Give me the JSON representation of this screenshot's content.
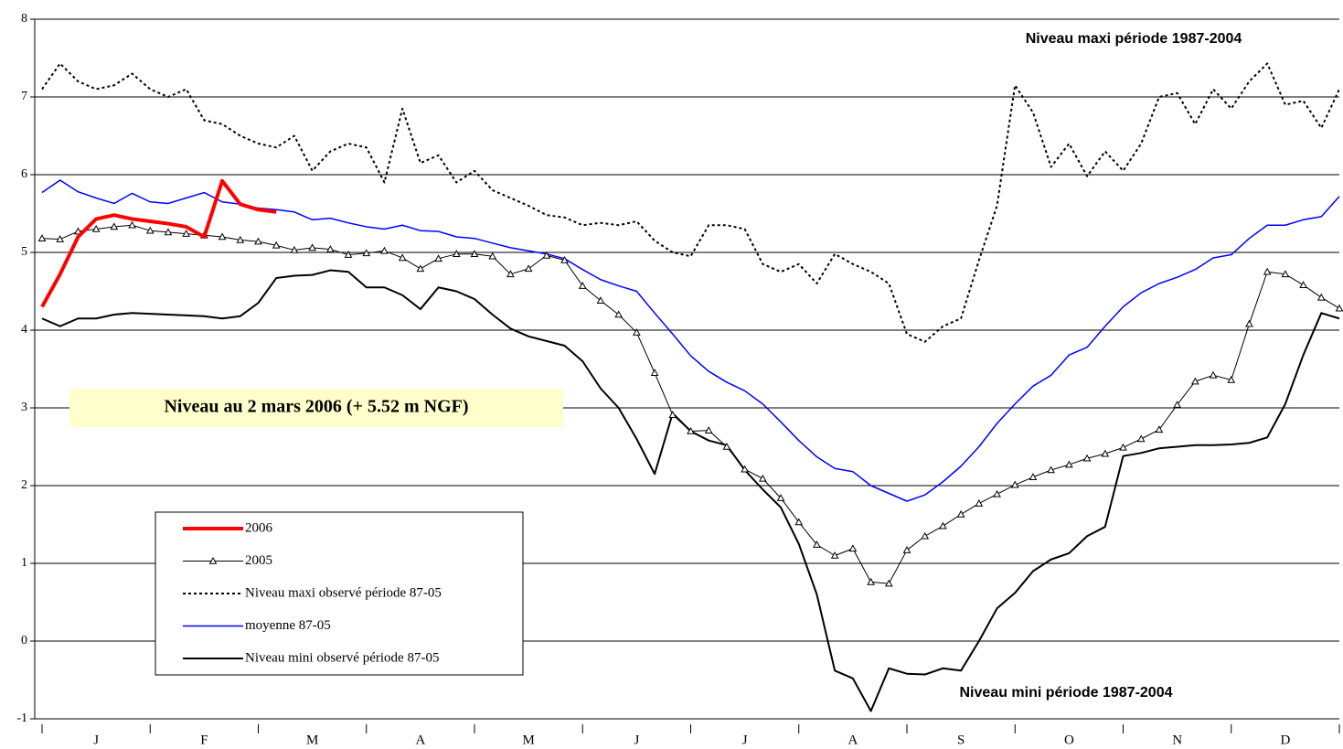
{
  "chart_data": {
    "type": "line",
    "x": [
      0,
      1,
      2,
      3,
      4,
      5,
      6,
      7,
      8,
      9,
      10,
      11,
      12,
      13,
      14,
      15,
      16,
      17,
      18,
      19,
      20,
      21,
      22,
      23,
      24,
      25,
      26,
      27,
      28,
      29,
      30,
      31,
      32,
      33,
      34,
      35,
      36,
      37,
      38,
      39,
      40,
      41,
      42,
      43,
      44,
      45,
      46,
      47,
      48,
      49,
      50,
      51,
      52,
      53,
      54,
      55,
      56,
      57,
      58,
      59,
      60,
      61,
      62,
      63,
      64,
      65,
      66,
      67,
      68,
      69,
      70,
      71,
      72
    ],
    "xlim": [
      0,
      72
    ],
    "xticks": [
      {
        "value": 3,
        "label": "J"
      },
      {
        "value": 9,
        "label": "F"
      },
      {
        "value": 15,
        "label": "M"
      },
      {
        "value": 21,
        "label": "A"
      },
      {
        "value": 27,
        "label": "M"
      },
      {
        "value": 33,
        "label": "J"
      },
      {
        "value": 39,
        "label": "J"
      },
      {
        "value": 45,
        "label": "A"
      },
      {
        "value": 51,
        "label": "S"
      },
      {
        "value": 57,
        "label": "O"
      },
      {
        "value": 63,
        "label": "N"
      },
      {
        "value": 69,
        "label": "D"
      }
    ],
    "ylim": [
      -1,
      8
    ],
    "yticks": [
      -1,
      0,
      1,
      2,
      3,
      4,
      5,
      6,
      7,
      8
    ],
    "grid": true,
    "legend": "bottom-left",
    "series": [
      {
        "name": "2006",
        "color": "#ff0000",
        "values": [
          4.3,
          4.72,
          5.2,
          5.43,
          5.48,
          5.43,
          5.4,
          5.37,
          5.33,
          5.2,
          5.92,
          5.62,
          5.55,
          5.52,
          null,
          null,
          null,
          null,
          null,
          null,
          null,
          null,
          null,
          null,
          null,
          null,
          null,
          null,
          null,
          null,
          null,
          null,
          null,
          null,
          null,
          null,
          null,
          null,
          null,
          null,
          null,
          null,
          null,
          null,
          null,
          null,
          null,
          null,
          null,
          null,
          null,
          null,
          null,
          null,
          null,
          null,
          null,
          null,
          null,
          null,
          null,
          null,
          null,
          null,
          null,
          null,
          null,
          null,
          null,
          null,
          null,
          null,
          null
        ]
      },
      {
        "name": "2005",
        "color": "#000000",
        "marker": "triangle",
        "values": [
          5.18,
          5.17,
          5.27,
          5.3,
          5.33,
          5.35,
          5.28,
          5.26,
          5.24,
          5.22,
          5.2,
          5.16,
          5.14,
          5.09,
          5.03,
          5.06,
          5.04,
          4.97,
          4.99,
          5.02,
          4.93,
          4.79,
          4.92,
          4.98,
          4.98,
          4.95,
          4.72,
          4.79,
          4.96,
          4.9,
          4.57,
          4.38,
          4.2,
          3.97,
          3.45,
          2.91,
          2.7,
          2.71,
          2.5,
          2.21,
          2.09,
          1.84,
          1.53,
          1.24,
          1.1,
          1.19,
          0.76,
          0.74,
          1.17,
          1.35,
          1.48,
          1.63,
          1.77,
          1.89,
          2.01,
          2.11,
          2.2,
          2.27,
          2.35,
          2.41,
          2.49,
          2.6,
          2.72,
          3.04,
          3.34,
          3.42,
          3.36,
          4.08,
          4.75,
          4.72,
          4.58,
          4.42,
          4.28
        ]
      },
      {
        "name": "Niveau maxi observé période 87-05",
        "color": "#000000",
        "dash": "dotted",
        "values": [
          7.1,
          7.43,
          7.2,
          7.1,
          7.15,
          7.3,
          7.1,
          7.0,
          7.1,
          6.7,
          6.65,
          6.5,
          6.4,
          6.35,
          6.5,
          6.05,
          6.3,
          6.4,
          6.35,
          5.9,
          6.85,
          6.15,
          6.25,
          5.9,
          6.05,
          5.8,
          5.7,
          5.6,
          5.48,
          5.45,
          5.35,
          5.38,
          5.35,
          5.4,
          5.15,
          5.0,
          4.95,
          5.35,
          5.35,
          5.3,
          4.85,
          4.75,
          4.85,
          4.6,
          4.98,
          4.85,
          4.75,
          4.6,
          3.95,
          3.85,
          4.05,
          4.15,
          4.9,
          5.6,
          7.15,
          6.8,
          6.1,
          6.4,
          5.98,
          6.3,
          6.05,
          6.4,
          7.0,
          7.05,
          6.65,
          7.1,
          6.85,
          7.2,
          7.43,
          6.9,
          6.95,
          6.6,
          7.1
        ]
      },
      {
        "name": "moyenne 87-05",
        "color": "#0000ff",
        "values": [
          5.77,
          5.93,
          5.78,
          5.7,
          5.63,
          5.76,
          5.65,
          5.63,
          5.7,
          5.77,
          5.65,
          5.62,
          5.57,
          5.55,
          5.52,
          5.42,
          5.44,
          5.38,
          5.33,
          5.3,
          5.35,
          5.28,
          5.27,
          5.2,
          5.18,
          5.12,
          5.06,
          5.02,
          4.98,
          4.92,
          4.78,
          4.65,
          4.57,
          4.5,
          4.22,
          3.95,
          3.67,
          3.47,
          3.33,
          3.22,
          3.05,
          2.82,
          2.58,
          2.37,
          2.22,
          2.18,
          2.0,
          1.9,
          1.8,
          1.88,
          2.05,
          2.25,
          2.5,
          2.8,
          3.05,
          3.28,
          3.42,
          3.68,
          3.78,
          4.05,
          4.3,
          4.48,
          4.6,
          4.68,
          4.78,
          4.93,
          4.97,
          5.18,
          5.35,
          5.35,
          5.42,
          5.46,
          5.72
        ]
      },
      {
        "name": "Niveau mini observé période 87-05",
        "color": "#000000",
        "values": [
          4.15,
          4.05,
          4.15,
          4.15,
          4.2,
          4.22,
          4.21,
          4.2,
          4.19,
          4.18,
          4.15,
          4.18,
          4.35,
          4.67,
          4.7,
          4.71,
          4.77,
          4.75,
          4.55,
          4.55,
          4.45,
          4.27,
          4.55,
          4.5,
          4.4,
          4.2,
          4.02,
          3.92,
          3.86,
          3.8,
          3.6,
          3.25,
          3.0,
          2.6,
          2.15,
          2.93,
          2.7,
          2.58,
          2.52,
          2.2,
          1.95,
          1.72,
          1.25,
          0.6,
          -0.38,
          -0.48,
          -0.9,
          -0.35,
          -0.42,
          -0.43,
          -0.35,
          -0.38,
          0.0,
          0.42,
          0.62,
          0.9,
          1.05,
          1.13,
          1.35,
          1.47,
          2.38,
          2.42,
          2.48,
          2.5,
          2.52,
          2.52,
          2.53,
          2.55,
          2.62,
          3.05,
          3.68,
          4.22,
          4.15
        ]
      }
    ],
    "annotations": [
      "Niveau maxi période 1987-2004",
      "Niveau mini période 1987-2004"
    ],
    "highlight": "Niveau au 2 mars 2006 (+ 5.52 m NGF)"
  }
}
